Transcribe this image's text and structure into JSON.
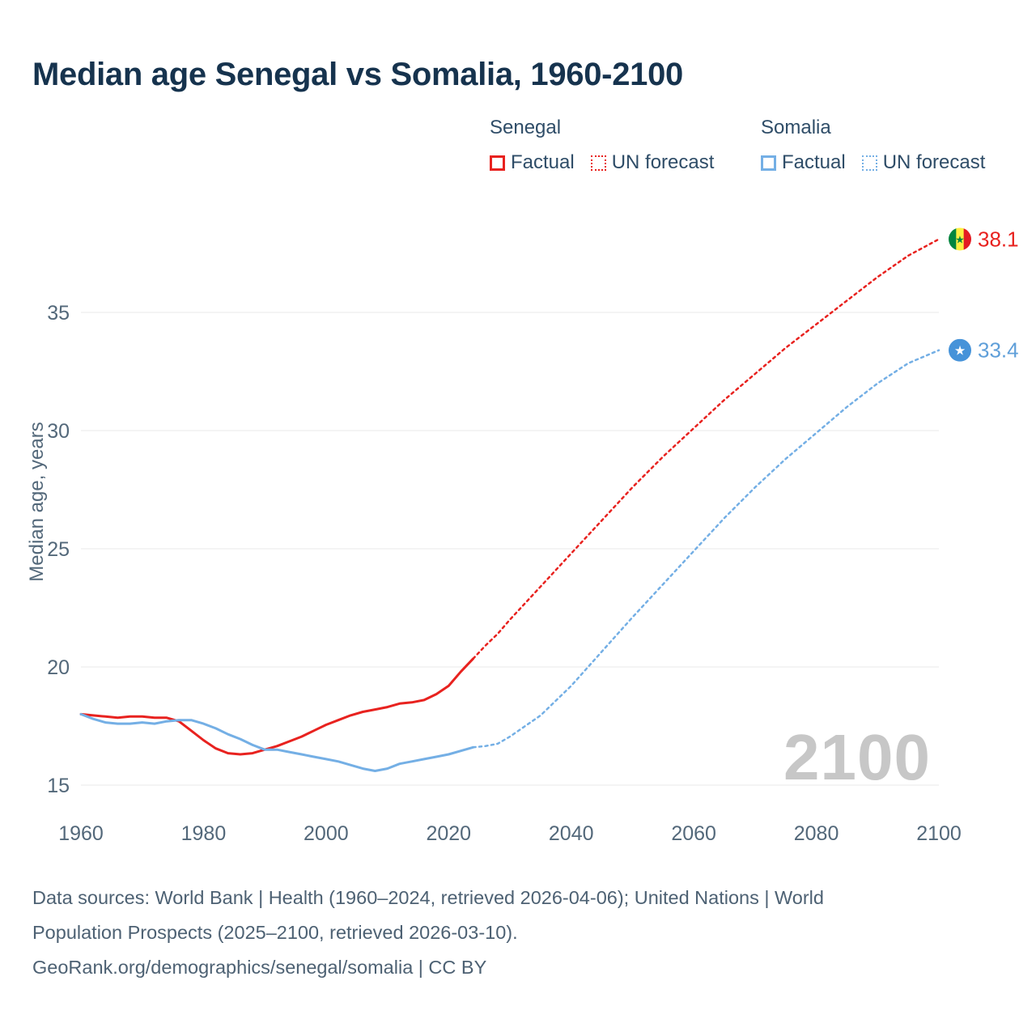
{
  "title": "Median age Senegal vs Somalia, 1960-2100",
  "watermark": "2100",
  "legend": {
    "groups": [
      {
        "name": "Senegal",
        "color": "#e8221f",
        "factual_label": "Factual",
        "forecast_label": "UN forecast"
      },
      {
        "name": "Somalia",
        "color": "#74afe5",
        "factual_label": "Factual",
        "forecast_label": "UN forecast"
      }
    ]
  },
  "footer": {
    "lines": [
      "Data sources: World Bank | Health (1960–2024, retrieved 2026-04-06); United Nations | World",
      "Population Prospects (2025–2100, retrieved 2026-03-10).",
      "GeoRank.org/demographics/senegal/somalia | CC BY"
    ]
  },
  "flags": {
    "senegal": {
      "green": "#00853f",
      "yellow": "#fdef42",
      "red": "#e31b23"
    },
    "somalia": {
      "blue": "#4693d9",
      "star": "#ffffff"
    }
  },
  "chart_data": {
    "type": "line",
    "title": "Median age Senegal vs Somalia, 1960-2100",
    "xlabel": "",
    "ylabel": "Median age, years",
    "xlim": [
      1960,
      2100
    ],
    "ylim": [
      15,
      39
    ],
    "yticks": [
      15,
      20,
      25,
      30,
      35
    ],
    "xticks": [
      1960,
      1980,
      2000,
      2020,
      2040,
      2060,
      2080,
      2100
    ],
    "grid": "horizontal",
    "legend_position": "top",
    "series": [
      {
        "id": "senegal-factual",
        "name": "Senegal Factual",
        "color": "#e8221f",
        "style": "solid",
        "x": [
          1960,
          1962,
          1964,
          1966,
          1968,
          1970,
          1972,
          1974,
          1976,
          1978,
          1980,
          1982,
          1984,
          1986,
          1988,
          1990,
          1992,
          1994,
          1996,
          1998,
          2000,
          2002,
          2004,
          2006,
          2008,
          2010,
          2012,
          2014,
          2016,
          2018,
          2020,
          2022,
          2024
        ],
        "y": [
          18.0,
          17.95,
          17.9,
          17.85,
          17.9,
          17.9,
          17.85,
          17.85,
          17.7,
          17.3,
          16.9,
          16.55,
          16.35,
          16.3,
          16.35,
          16.5,
          16.65,
          16.85,
          17.05,
          17.3,
          17.55,
          17.75,
          17.95,
          18.1,
          18.2,
          18.3,
          18.45,
          18.5,
          18.6,
          18.85,
          19.2,
          19.8,
          20.35
        ]
      },
      {
        "id": "senegal-forecast",
        "name": "Senegal UN forecast",
        "color": "#e8221f",
        "style": "dashed",
        "x": [
          2024,
          2026,
          2028,
          2030,
          2035,
          2040,
          2045,
          2050,
          2055,
          2060,
          2065,
          2070,
          2075,
          2080,
          2085,
          2090,
          2095,
          2100
        ],
        "y": [
          20.35,
          20.9,
          21.4,
          22.0,
          23.4,
          24.8,
          26.2,
          27.6,
          28.9,
          30.1,
          31.3,
          32.4,
          33.5,
          34.5,
          35.5,
          36.5,
          37.4,
          38.1
        ]
      },
      {
        "id": "somalia-factual",
        "name": "Somalia Factual",
        "color": "#74afe5",
        "style": "solid",
        "x": [
          1960,
          1962,
          1964,
          1966,
          1968,
          1970,
          1972,
          1974,
          1976,
          1978,
          1980,
          1982,
          1984,
          1986,
          1988,
          1990,
          1992,
          1994,
          1996,
          1998,
          2000,
          2002,
          2004,
          2006,
          2008,
          2010,
          2012,
          2014,
          2016,
          2018,
          2020,
          2022,
          2024
        ],
        "y": [
          18.0,
          17.8,
          17.65,
          17.6,
          17.6,
          17.65,
          17.6,
          17.7,
          17.75,
          17.75,
          17.6,
          17.4,
          17.15,
          16.95,
          16.7,
          16.5,
          16.5,
          16.4,
          16.3,
          16.2,
          16.1,
          16.0,
          15.85,
          15.7,
          15.6,
          15.7,
          15.9,
          16.0,
          16.1,
          16.2,
          16.3,
          16.45,
          16.6
        ]
      },
      {
        "id": "somalia-forecast",
        "name": "Somalia UN forecast",
        "color": "#74afe5",
        "style": "dashed",
        "x": [
          2024,
          2026,
          2028,
          2030,
          2035,
          2040,
          2045,
          2050,
          2055,
          2060,
          2065,
          2070,
          2075,
          2080,
          2085,
          2090,
          2095,
          2100
        ],
        "y": [
          16.6,
          16.65,
          16.75,
          17.05,
          17.95,
          19.2,
          20.65,
          22.1,
          23.5,
          24.9,
          26.3,
          27.6,
          28.8,
          29.9,
          31.0,
          32.0,
          32.85,
          33.4
        ]
      }
    ],
    "end_labels": [
      {
        "id": "senegal",
        "value": "38.1",
        "y": 38.1,
        "color": "#e8221f",
        "flag": "senegal"
      },
      {
        "id": "somalia",
        "value": "33.4",
        "y": 33.4,
        "color": "#5f9fd9",
        "flag": "somalia"
      }
    ]
  }
}
